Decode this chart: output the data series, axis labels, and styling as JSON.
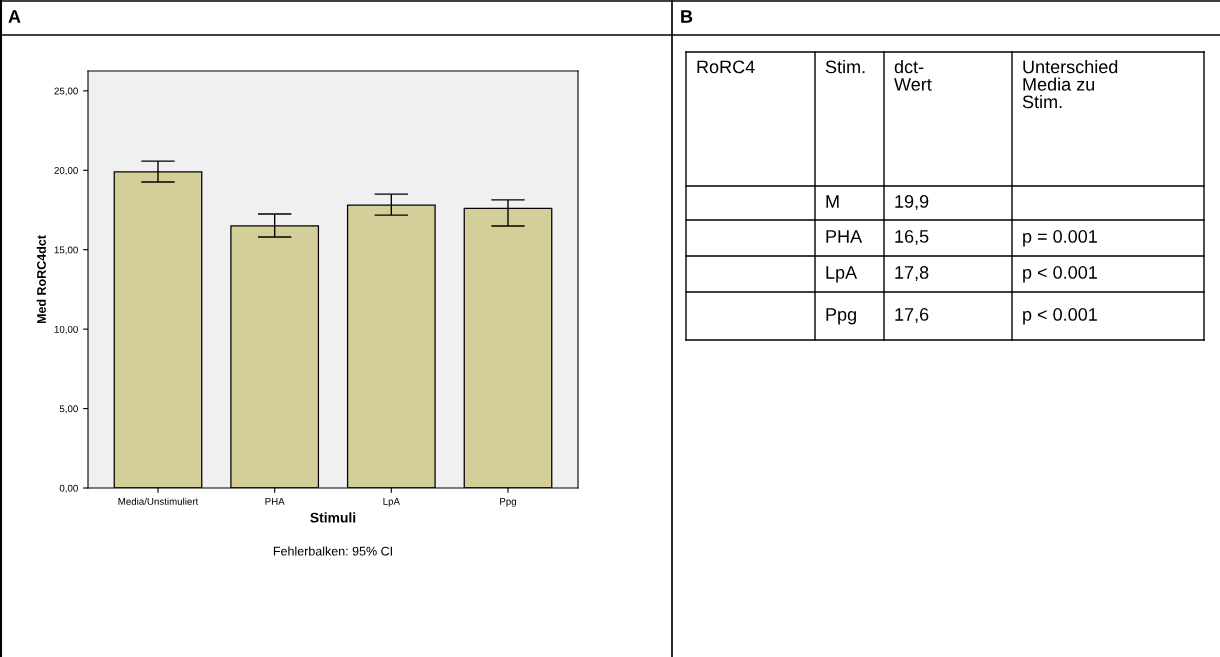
{
  "chart_data": [
    {
      "type": "bar",
      "title": "A",
      "categories": [
        "Media/Unstimuliert",
        "PHA",
        "LpA",
        "Ppg"
      ],
      "values": [
        19.9,
        16.5,
        17.8,
        17.6
      ],
      "color": "#d4cf98",
      "errors": [
        [
          19.26,
          20.58
        ],
        [
          15.8,
          17.25
        ],
        [
          17.18,
          18.5
        ],
        [
          16.49,
          18.14
        ]
      ],
      "ylabel": "Med RoRC4dct",
      "xlabel": "Stimuli",
      "annotations": [
        "Fehlerbalken: 95% CI"
      ],
      "ylim": [
        0,
        26.25
      ],
      "yticks": [
        {
          "value": 0,
          "label": "0,00"
        },
        {
          "value": 5,
          "label": "5,00"
        },
        {
          "value": 10,
          "label": "10,00"
        },
        {
          "value": 15,
          "label": "15,00"
        },
        {
          "value": 20,
          "label": "20,00"
        },
        {
          "value": 25,
          "label": "25,00"
        }
      ],
      "grid": false
    },
    {
      "type": "other",
      "title": "B",
      "annotations": [
        "RoRC4",
        "Stim.",
        "dct-\nWert",
        "Unterschied\nMedia zu\nStim.",
        null,
        "M",
        "19,9",
        null,
        null,
        "PHA",
        "16,5",
        "p = 0.001",
        null,
        "LpA",
        "17,8",
        "p < 0.001",
        null,
        "Ppg",
        "17,6",
        "p < 0.001"
      ]
    }
  ]
}
